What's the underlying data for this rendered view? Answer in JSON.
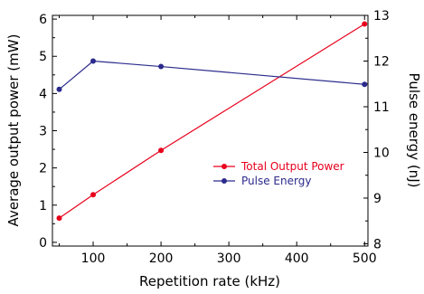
{
  "chart_data": {
    "type": "line",
    "title": "",
    "xlabel": "Repetition rate (kHz)",
    "ylabel_left": "Average output power (mW)",
    "ylabel_right": "Pulse energy (nJ)",
    "xlim": [
      40,
      505
    ],
    "ylim_left": [
      -0.1,
      6.1
    ],
    "ylim_right": [
      7.95,
      13.0
    ],
    "x_ticks": [
      "100",
      "200",
      "300",
      "400",
      "500"
    ],
    "y_left_ticks": [
      "0",
      "1",
      "2",
      "3",
      "4",
      "5",
      "6"
    ],
    "y_right_ticks": [
      "8",
      "9",
      "10",
      "11",
      "12",
      "13"
    ],
    "grid": false,
    "legend_position": "center-right",
    "series": [
      {
        "name": "Total Output Power",
        "axis": "left",
        "color": "#e8001c",
        "marker": "circle",
        "x": [
          50,
          100,
          200,
          500
        ],
        "y": [
          0.65,
          1.28,
          2.47,
          5.87
        ]
      },
      {
        "name": "Pulse Energy",
        "axis": "right",
        "color": "#2b2a8c",
        "marker": "circle",
        "x": [
          50,
          100,
          200,
          500
        ],
        "y": [
          11.38,
          12.0,
          11.88,
          11.49
        ]
      }
    ]
  }
}
